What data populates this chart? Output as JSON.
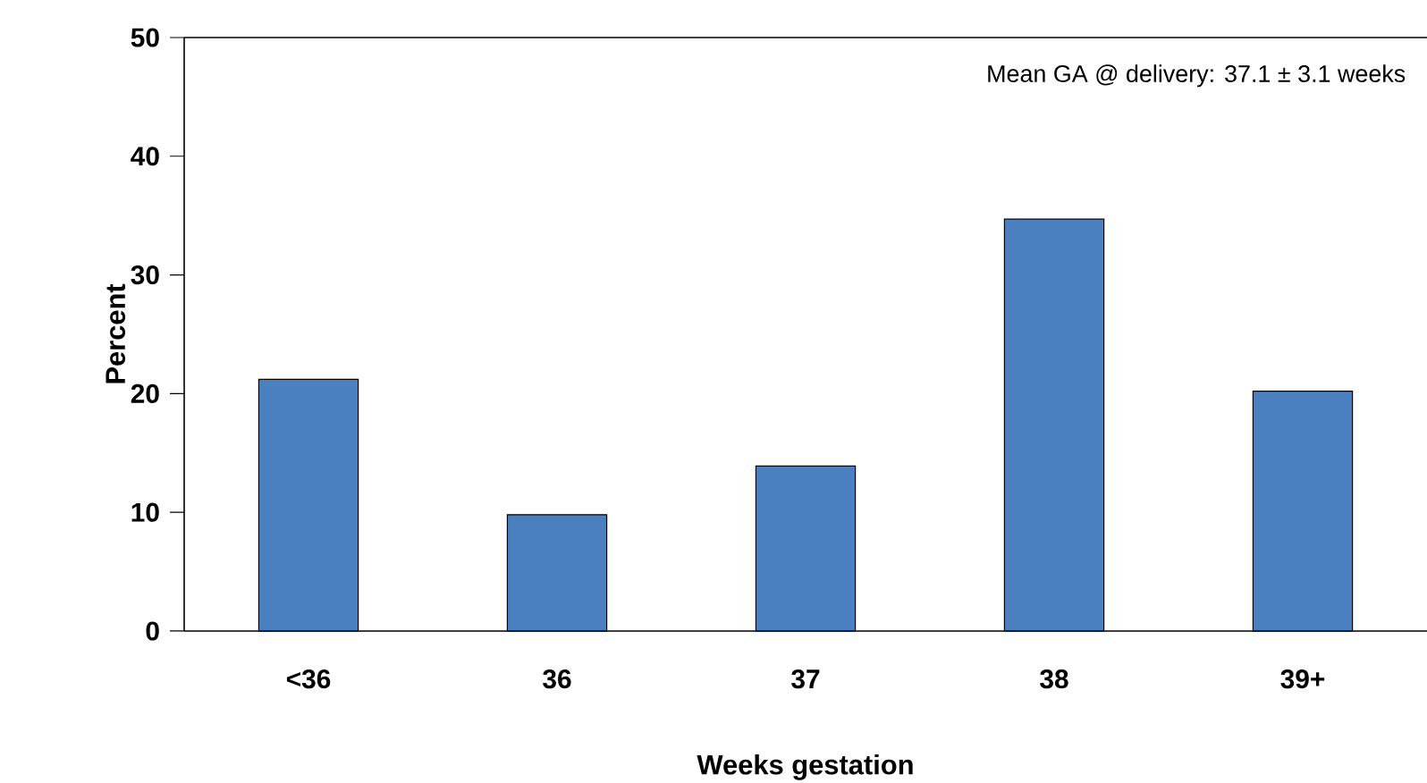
{
  "chart_data": {
    "type": "bar",
    "categories": [
      "<36",
      "36",
      "37",
      "38",
      "39+"
    ],
    "values": [
      21.2,
      9.8,
      13.9,
      34.7,
      20.2
    ],
    "color": "#4a80bf",
    "xlabel": "Weeks gestation",
    "ylabel": "Percent",
    "ylim": [
      0,
      50
    ],
    "yticks": [
      0,
      10,
      20,
      30,
      40,
      50
    ],
    "annotations": [
      "Mean GA @ delivery: 37.1 ± 3.1 weeks"
    ],
    "grid": false
  }
}
